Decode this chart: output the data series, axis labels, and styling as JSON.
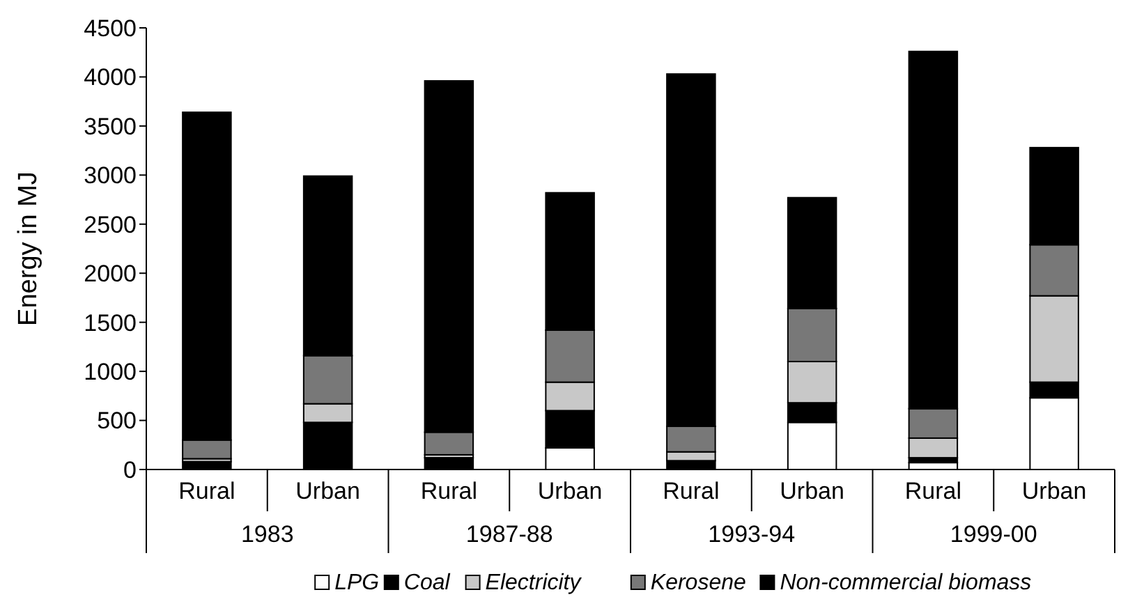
{
  "chart_data": {
    "type": "bar",
    "stacked": true,
    "ylabel": "Energy in MJ",
    "categories": [
      "Rural",
      "Urban",
      "Rural",
      "Urban",
      "Rural",
      "Urban",
      "Rural",
      "Urban"
    ],
    "annotations": [
      "1983",
      "1987-88",
      "1993-94",
      "1999-00"
    ],
    "ylim": [
      0,
      4500
    ],
    "yticks": [
      0,
      500,
      1000,
      1500,
      2000,
      2500,
      3000,
      3500,
      4000,
      4500
    ],
    "legend": "bottom",
    "grid": false,
    "series": [
      {
        "name": "LPG",
        "color": "#ffffff",
        "values": [
          0,
          0,
          0,
          220,
          0,
          480,
          70,
          730
        ]
      },
      {
        "name": "Coal",
        "color": "#000000",
        "values": [
          80,
          480,
          120,
          380,
          90,
          200,
          50,
          160
        ]
      },
      {
        "name": "Electricity",
        "color": "#c8c8c8",
        "values": [
          30,
          190,
          30,
          290,
          90,
          420,
          200,
          880
        ]
      },
      {
        "name": "Kerosene",
        "color": "#787878",
        "values": [
          190,
          490,
          230,
          530,
          260,
          540,
          300,
          520
        ]
      },
      {
        "name": "Non-commercial biomass",
        "color": "#000000",
        "values": [
          3340,
          1830,
          3580,
          1400,
          3590,
          1130,
          3640,
          990
        ]
      }
    ]
  }
}
